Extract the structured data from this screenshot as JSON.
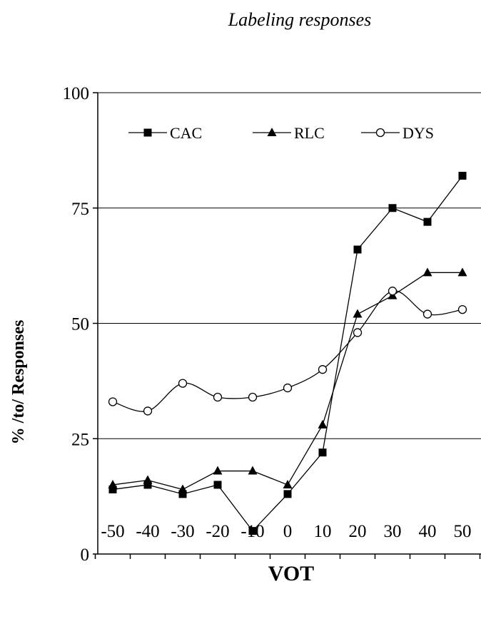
{
  "chart_data": {
    "type": "line",
    "title": "Labeling responses",
    "xlabel": "VOT",
    "ylabel": "% /to/ Responses",
    "x": [
      -50,
      -40,
      -30,
      -20,
      -10,
      0,
      10,
      20,
      30,
      40,
      50
    ],
    "x_tick_labels": [
      "-50",
      "-40",
      "-30",
      "-20",
      "-10",
      "0",
      "10",
      "20",
      "30",
      "40",
      "50"
    ],
    "y_ticks": [
      0,
      25,
      50,
      75,
      100
    ],
    "y_tick_labels": [
      "0",
      "25",
      "50",
      "75",
      "100"
    ],
    "ylim": [
      0,
      100
    ],
    "grid": "horizontal",
    "legend": "top",
    "series": [
      {
        "name": "CAC",
        "marker": "square",
        "values": [
          14,
          15,
          13,
          15,
          5,
          13,
          22,
          66,
          75,
          72,
          82
        ]
      },
      {
        "name": "RLC",
        "marker": "triangle",
        "values": [
          15,
          16,
          14,
          18,
          18,
          15,
          28,
          52,
          56,
          61,
          61
        ]
      },
      {
        "name": "DYS",
        "marker": "open-circle",
        "values": [
          33,
          31,
          37,
          34,
          34,
          36,
          40,
          48,
          57,
          52,
          53
        ]
      }
    ]
  }
}
